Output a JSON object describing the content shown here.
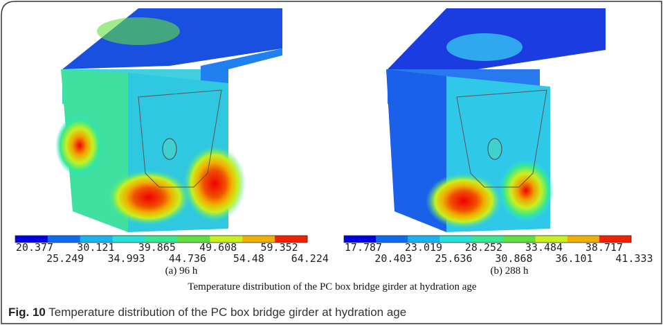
{
  "figure": {
    "panels": [
      {
        "colorbar_labels": [
          "20.377",
          "25.249",
          "30.121",
          "34.993",
          "39.865",
          "44.736",
          "49.608",
          "54.48",
          "59.352",
          "64.224"
        ],
        "subcaption": "(a) 96 h"
      },
      {
        "colorbar_labels": [
          "17.787",
          "20.403",
          "23.019",
          "25.636",
          "28.252",
          "30.868",
          "33.484",
          "36.101",
          "38.717",
          "41.333"
        ],
        "subcaption": "(b) 288 h"
      }
    ],
    "inner_caption": "Temperature distribution of the PC box bridge girder at hydration age",
    "caption_label": "Fig. 10",
    "caption_text": "Temperature distribution of the PC box bridge girder at hydration age"
  }
}
